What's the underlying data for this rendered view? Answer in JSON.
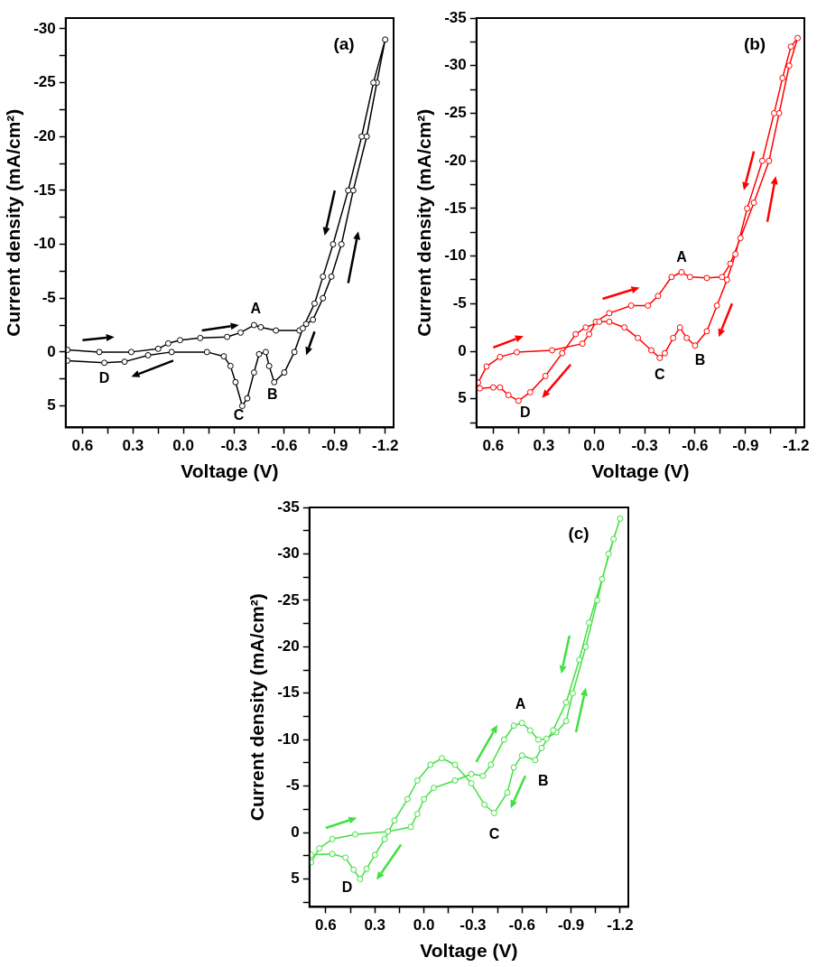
{
  "chart_data": [
    {
      "type": "line",
      "xlabel": "Voltage (V)",
      "ylabel": "Current density (mA/cm²)",
      "color": "#000000",
      "marker": "circle",
      "legend": false,
      "grid": false,
      "xlim": [
        0.7,
        -1.25
      ],
      "ylim": [
        7,
        -31
      ],
      "xticks": [
        0.6,
        {
          "value": 0.45,
          "label": null
        },
        0.3,
        {
          "value": 0.15,
          "label": null
        },
        {
          "value": 0,
          "label": "0.0"
        },
        {
          "value": -0.15,
          "label": null
        },
        -0.3,
        {
          "value": -0.45,
          "label": null
        },
        -0.6,
        {
          "value": -0.75,
          "label": null
        },
        -0.9,
        {
          "value": -1.05,
          "label": null
        },
        -1.2
      ],
      "yticks": [
        -30,
        {
          "value": -27.5,
          "label": null
        },
        -25,
        {
          "value": -22.5,
          "label": null
        },
        -20,
        {
          "value": -17.5,
          "label": null
        },
        -15,
        {
          "value": -12.5,
          "label": null
        },
        -10,
        {
          "value": -7.5,
          "label": null
        },
        -5,
        {
          "value": -2.5,
          "label": null
        },
        0,
        {
          "value": 2.5,
          "label": null
        },
        5
      ],
      "x": [
        0.69,
        0.5,
        0.31,
        0.15,
        0.09,
        0.02,
        -0.1,
        -0.26,
        -0.34,
        -0.42,
        -0.46,
        -0.55,
        -0.69,
        -0.73,
        -0.77,
        -0.83,
        -0.88,
        -0.94,
        -1.01,
        -1.09,
        -1.15,
        -1.2,
        -1.13,
        -1.06,
        -0.98,
        -0.89,
        -0.83,
        -0.78,
        -0.71,
        -0.66,
        -0.6,
        -0.54,
        -0.51,
        -0.49,
        -0.45,
        -0.42,
        -0.38,
        -0.35,
        -0.31,
        -0.28,
        -0.24,
        -0.14,
        0.07,
        0.21,
        0.35,
        0.47,
        0.69
      ],
      "values": [
        -0.2,
        0,
        0,
        -0.3,
        -0.8,
        -1.1,
        -1.3,
        -1.4,
        -1.8,
        -2.5,
        -2.3,
        -2,
        -2,
        -2.6,
        -3,
        -5,
        -7,
        -10,
        -15,
        -20,
        -25,
        -29,
        -25,
        -20,
        -15,
        -10,
        -7,
        -4.5,
        -2.2,
        0,
        1.9,
        2.8,
        1.3,
        0,
        0.2,
        1.9,
        4.3,
        5,
        2.8,
        1.3,
        0.4,
        0,
        0,
        0.3,
        0.9,
        1,
        0.8
      ],
      "annotations": [
        "(a)",
        "A",
        "B",
        "C",
        "D"
      ]
    },
    {
      "type": "line",
      "xlabel": "Voltage (V)",
      "ylabel": "Current density (mA/cm²)",
      "color": "#ff0000",
      "marker": "circle",
      "legend": false,
      "grid": false,
      "xlim": [
        0.7,
        -1.25
      ],
      "ylim": [
        8,
        -35
      ],
      "xticks": [
        0.6,
        {
          "value": 0.45,
          "label": null
        },
        0.3,
        {
          "value": 0.15,
          "label": null
        },
        {
          "value": 0,
          "label": "0.0"
        },
        {
          "value": -0.15,
          "label": null
        },
        -0.3,
        {
          "value": -0.45,
          "label": null
        },
        -0.6,
        {
          "value": -0.75,
          "label": null
        },
        -0.9,
        {
          "value": -1.05,
          "label": null
        },
        -1.2
      ],
      "yticks": [
        -35,
        {
          "value": -32.5,
          "label": null
        },
        -30,
        {
          "value": -27.5,
          "label": null
        },
        -25,
        {
          "value": -22.5,
          "label": null
        },
        -20,
        {
          "value": -17.5,
          "label": null
        },
        -15,
        {
          "value": -12.5,
          "label": null
        },
        -10,
        {
          "value": -7.5,
          "label": null
        },
        -5,
        {
          "value": -2.5,
          "label": null
        },
        0,
        {
          "value": 2.5,
          "label": null
        },
        5,
        {
          "value": 7.5,
          "label": null
        }
      ],
      "x": [
        0.69,
        0.64,
        0.56,
        0.46,
        0.25,
        0.07,
        0.03,
        -0.01,
        -0.09,
        -0.22,
        -0.32,
        -0.38,
        -0.46,
        -0.52,
        -0.57,
        -0.67,
        -0.76,
        -0.81,
        -0.87,
        -0.95,
        -1.04,
        -1.1,
        -1.16,
        -1.21,
        -1.17,
        -1.12,
        -1.07,
        -1,
        -0.91,
        -0.84,
        -0.79,
        -0.73,
        -0.67,
        -0.6,
        -0.55,
        -0.51,
        -0.47,
        -0.42,
        -0.39,
        -0.34,
        -0.26,
        -0.18,
        -0.09,
        -0.03,
        0.05,
        0.11,
        0.19,
        0.29,
        0.38,
        0.45,
        0.51,
        0.56,
        0.6,
        0.68
      ],
      "values": [
        3.3,
        1.6,
        0.6,
        0.1,
        -0.1,
        -0.8,
        -1.8,
        -3.1,
        -4,
        -4.8,
        -4.8,
        -5.8,
        -7.8,
        -8.3,
        -7.8,
        -7.7,
        -7.8,
        -9.2,
        -11.9,
        -15.6,
        -20,
        -25,
        -30,
        -32.9,
        -32,
        -28.7,
        -25,
        -20,
        -15,
        -10.2,
        -7.5,
        -4.8,
        -2.1,
        -0.6,
        -1.4,
        -2.5,
        -1.4,
        0.2,
        0.7,
        -0.1,
        -1.4,
        -2.5,
        -3.1,
        -3.1,
        -2.5,
        -1.8,
        0.2,
        2.6,
        4.3,
        5.2,
        4.6,
        3.8,
        3.8,
        3.9
      ],
      "annotations": [
        "(b)",
        "A",
        "B",
        "C",
        "D"
      ]
    },
    {
      "type": "line",
      "xlabel": "Voltage (V)",
      "ylabel": "Current density (mA/cm²)",
      "color": "#40e040",
      "marker": "circle",
      "legend": false,
      "grid": false,
      "xlim": [
        0.7,
        -1.25
      ],
      "ylim": [
        8,
        -35
      ],
      "xticks": [
        0.6,
        {
          "value": 0.45,
          "label": null
        },
        0.3,
        {
          "value": 0.15,
          "label": null
        },
        {
          "value": 0,
          "label": "0.0"
        },
        {
          "value": -0.15,
          "label": null
        },
        -0.3,
        {
          "value": -0.45,
          "label": null
        },
        -0.6,
        {
          "value": -0.75,
          "label": null
        },
        -0.9,
        {
          "value": -1.05,
          "label": null
        },
        -1.2
      ],
      "yticks": [
        -35,
        {
          "value": -32.5,
          "label": null
        },
        -30,
        {
          "value": -27.5,
          "label": null
        },
        -25,
        {
          "value": -22.5,
          "label": null
        },
        -20,
        {
          "value": -17.5,
          "label": null
        },
        -15,
        {
          "value": -12.5,
          "label": null
        },
        -10,
        {
          "value": -7.5,
          "label": null
        },
        -5,
        {
          "value": -2.5,
          "label": null
        },
        0,
        {
          "value": 2.5,
          "label": null
        },
        5,
        {
          "value": 7.5,
          "label": null
        }
      ],
      "x": [
        0.69,
        0.64,
        0.56,
        0.42,
        0.22,
        0.08,
        0.04,
        0,
        -0.06,
        -0.19,
        -0.29,
        -0.36,
        -0.41,
        -0.49,
        -0.55,
        -0.6,
        -0.65,
        -0.7,
        -0.75,
        -0.81,
        -0.87,
        -0.91,
        -0.99,
        -1.06,
        -1.13,
        -1.2,
        -1.16,
        -1.09,
        -1.01,
        -0.95,
        -0.87,
        -0.79,
        -0.72,
        -0.68,
        -0.6,
        -0.55,
        -0.51,
        -0.43,
        -0.37,
        -0.29,
        -0.19,
        -0.11,
        -0.04,
        0.04,
        0.1,
        0.18,
        0.24,
        0.3,
        0.35,
        0.39,
        0.43,
        0.48,
        0.56,
        0.69
      ],
      "values": [
        3.2,
        1.7,
        0.7,
        0.2,
        -0.1,
        -0.6,
        -2,
        -3.6,
        -4.8,
        -5.6,
        -6.3,
        -6.1,
        -7.3,
        -10,
        -11.5,
        -11.8,
        -11,
        -10,
        -10.1,
        -10.8,
        -12,
        -15,
        -20,
        -25,
        -30,
        -33.8,
        -31.6,
        -27.3,
        -22.6,
        -18.6,
        -14,
        -11,
        -9.1,
        -7.8,
        -8.3,
        -7,
        -4.3,
        -2.1,
        -3,
        -5.3,
        -7.3,
        -8,
        -7.3,
        -5.6,
        -3.6,
        -1.3,
        0.7,
        2.4,
        3.9,
        5,
        4,
        2.7,
        2.3,
        2.4
      ],
      "annotations": [
        "(c)",
        "A",
        "B",
        "C",
        "D"
      ]
    }
  ]
}
